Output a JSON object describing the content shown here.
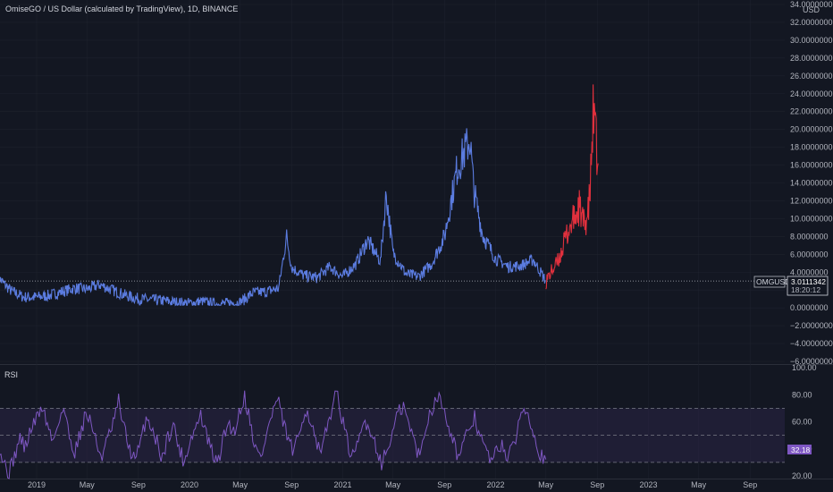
{
  "header": {
    "title": "OmiseGO / US Dollar (calculated by TradingView), 1D, BINANCE"
  },
  "rsi_panel": {
    "title": "RSI"
  },
  "price_tag": {
    "symbol": "OMGUSD",
    "price": "3.0111342",
    "countdown": "18:20:12"
  },
  "rsi_tag": {
    "value": "32.18"
  },
  "colors": {
    "background": "#131722",
    "price_line_history": "#5b7ce0",
    "price_line_highlight": "#e8ecf5",
    "projection": "#e0303d",
    "rsi_line": "#7e57c2",
    "rsi_band": "#2a2545",
    "rsi_tag_bg": "#7e57c2",
    "grid": "#1e222d"
  },
  "chart_data": [
    {
      "type": "line",
      "id": "price",
      "ylabel": "USD",
      "ylim": [
        -6,
        34
      ],
      "y_ticks": [
        "34.0000000",
        "32.0000000",
        "30.0000000",
        "28.0000000",
        "26.0000000",
        "24.0000000",
        "22.0000000",
        "20.0000000",
        "18.0000000",
        "16.0000000",
        "14.0000000",
        "12.0000000",
        "10.0000000",
        "8.0000000",
        "6.0000000",
        "4.0000000",
        "2.0000000",
        "0.0000000",
        "−2.0000000",
        "−4.0000000",
        "−6.0000000"
      ],
      "x_ticks": [
        "2019",
        "May",
        "Sep",
        "2020",
        "May",
        "Sep",
        "2021",
        "May",
        "Sep",
        "2022",
        "May",
        "Sep",
        "2023",
        "May",
        "Sep"
      ],
      "last_price": 3.0111342,
      "series": [
        {
          "values_x": [
            "2018-10-01",
            "2018-11-01",
            "2018-12-01",
            "2019-01-01",
            "2019-02-01",
            "2019-03-01",
            "2019-04-01",
            "2019-05-01",
            "2019-06-01",
            "2019-07-01",
            "2019-08-01",
            "2019-09-01",
            "2019-10-01",
            "2019-11-01",
            "2019-12-01",
            "2020-01-01",
            "2020-02-01",
            "2020-03-01",
            "2020-04-01",
            "2020-05-01",
            "2020-06-01",
            "2020-07-01",
            "2020-08-01",
            "2020-08-20",
            "2020-09-01",
            "2020-10-01",
            "2020-11-01",
            "2020-12-01",
            "2021-01-01",
            "2021-02-01",
            "2021-03-01",
            "2021-04-01",
            "2021-04-15",
            "2021-05-01",
            "2021-06-01",
            "2021-07-01",
            "2021-08-01",
            "2021-09-01",
            "2021-10-01",
            "2021-11-01",
            "2021-11-10",
            "2021-12-01",
            "2022-01-01",
            "2022-02-01",
            "2022-03-01",
            "2022-04-01",
            "2022-05-01"
          ],
          "values_y": [
            3.4,
            1.9,
            1.2,
            1.2,
            1.4,
            1.8,
            2.2,
            2.1,
            2.6,
            2.0,
            1.4,
            1.0,
            0.9,
            0.8,
            0.6,
            0.5,
            0.7,
            0.4,
            0.5,
            0.6,
            1.7,
            1.8,
            2.2,
            8.0,
            4.5,
            3.6,
            3.4,
            4.6,
            3.5,
            4.9,
            7.6,
            5.2,
            12.8,
            6.2,
            3.8,
            3.5,
            4.9,
            8.0,
            15.6,
            18.9,
            13.2,
            8.2,
            5.5,
            4.6,
            4.7,
            5.4,
            3.0
          ]
        },
        {
          "values_x": [
            "2022-05-01",
            "2022-06-01",
            "2022-06-20",
            "2022-07-01",
            "2022-07-20",
            "2022-08-01",
            "2022-08-10",
            "2022-08-15",
            "2022-08-22",
            "2022-08-28",
            "2022-09-03"
          ],
          "values_y": [
            3.0,
            5.4,
            8.2,
            9.4,
            11.2,
            9.2,
            10.6,
            13.2,
            21.5,
            18.8,
            16.2
          ]
        }
      ]
    },
    {
      "type": "line",
      "id": "rsi",
      "ylim": [
        20,
        100
      ],
      "y_ticks": [
        "100.00",
        "80.00",
        "60.00",
        "40.00",
        "20.00"
      ],
      "bands": [
        30,
        50,
        70
      ],
      "last_value": 32.18,
      "series": [
        {
          "values": [
            44,
            30,
            22,
            35,
            48,
            41,
            55,
            62,
            72,
            58,
            45,
            61,
            70,
            49,
            38,
            52,
            66,
            60,
            42,
            35,
            47,
            58,
            75,
            55,
            40,
            31,
            44,
            63,
            57,
            45,
            33,
            49,
            58,
            41,
            30,
            46,
            55,
            65,
            50,
            38,
            28,
            45,
            60,
            52,
            66,
            79,
            61,
            40,
            33,
            51,
            65,
            77,
            60,
            47,
            36,
            52,
            70,
            62,
            44,
            35,
            55,
            72,
            82,
            58,
            41,
            32,
            49,
            61,
            54,
            42,
            30,
            38,
            52,
            66,
            71,
            58,
            45,
            33,
            56,
            68,
            79,
            74,
            62,
            48,
            34,
            42,
            56,
            63,
            50,
            39,
            31,
            37,
            45,
            33,
            40,
            58,
            72,
            65,
            49,
            36,
            32
          ]
        }
      ]
    }
  ]
}
